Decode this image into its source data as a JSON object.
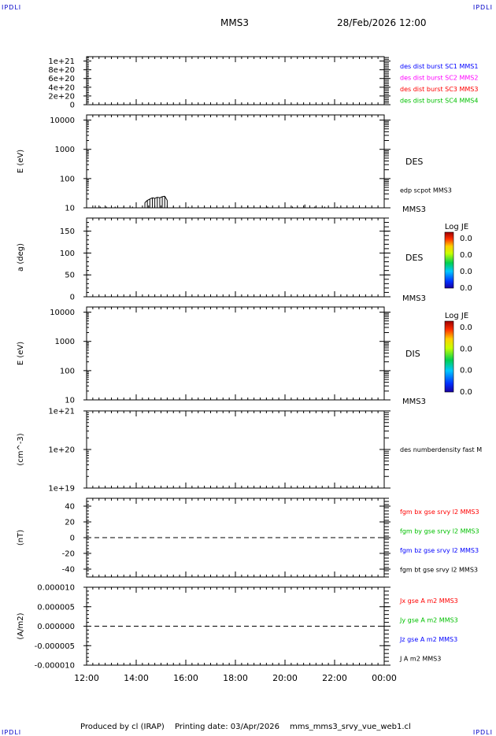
{
  "header": {
    "corner_left": "IPDLI",
    "corner_right": "IPDLI",
    "spacecraft": "MMS3",
    "date_time": "28/Feb/2026 12:00"
  },
  "footer": {
    "produced_by": "Produced by cl (IRAP)",
    "printing_date": "Printing date: 03/Apr/2026",
    "filename": "mms_mms3_srvy_vue_web1.cl",
    "corner_left": "IPDLI",
    "corner_right": "IPDLI"
  },
  "colors": {
    "blue": "#0000ff",
    "magenta": "#ff00ff",
    "red": "#ff0000",
    "green": "#00c000",
    "black": "#000000",
    "corner": "#0000c8"
  },
  "chart_data": [
    {
      "type": "line",
      "ylabel": "",
      "yscale": "linear",
      "ylim": [
        0,
        1.1e+21
      ],
      "ytick_values": [
        0,
        2e+20,
        4e+20,
        6e+20,
        8e+20,
        1e+21
      ],
      "ytick_labels": [
        "0",
        "2e+20",
        "4e+20",
        "6e+20",
        "8e+20",
        "1e+21"
      ],
      "reference_line": 0,
      "series": [
        {
          "name": "des dist burst SC1 MMS1",
          "color": "#0000ff",
          "values": []
        },
        {
          "name": "des dist burst SC2 MMS2",
          "color": "#ff00ff",
          "values": []
        },
        {
          "name": "des dist burst SC3 MMS3",
          "color": "#ff0000",
          "values": []
        },
        {
          "name": "des dist burst SC4 MMS4",
          "color": "#00c000",
          "values": []
        }
      ]
    },
    {
      "type": "heatmap",
      "ylabel": "E (eV)",
      "yscale": "log",
      "ylim": [
        10,
        15000
      ],
      "ytick_values": [
        10,
        100,
        1000,
        10000
      ],
      "ytick_labels": [
        "10",
        "100",
        "1000",
        "10000"
      ],
      "side_label": "DES",
      "spacecraft_label": "MMS3",
      "overlay_label": "edp scpot MMS3",
      "colorbar": {
        "title": "Log JE",
        "labels": [
          "0.0",
          "0.0",
          "0.0",
          "0.0"
        ]
      },
      "overlay": {
        "name": "edp scpot MMS3",
        "color": "#000000",
        "x": [
          12.35,
          12.55,
          12.8,
          13.15,
          13.5,
          13.85,
          14.35,
          14.45,
          14.55,
          14.65,
          14.75,
          14.85,
          14.95,
          15.05,
          15.15,
          15.25,
          15.5,
          16.1,
          17.0,
          18.5,
          19.3,
          20.3,
          20.8,
          21.2,
          21.6,
          22.1
        ],
        "y": [
          12,
          11,
          11,
          11,
          11,
          11,
          15,
          18,
          20,
          22,
          21,
          23,
          22,
          24,
          25,
          18,
          11,
          11,
          11,
          12,
          11,
          11,
          13,
          11,
          11,
          11
        ]
      }
    },
    {
      "type": "heatmap",
      "ylabel": "a (deg)",
      "yscale": "linear",
      "ylim": [
        0,
        180
      ],
      "ytick_values": [
        0,
        50,
        100,
        150
      ],
      "ytick_labels": [
        "0",
        "50",
        "100",
        "150"
      ],
      "side_label": "DES",
      "spacecraft_label": "MMS3",
      "colorbar": {
        "title": "Log JE",
        "labels": [
          "0.0",
          "0.0",
          "0.0",
          "0.0"
        ]
      }
    },
    {
      "type": "heatmap",
      "ylabel": "E (eV)",
      "yscale": "log",
      "ylim": [
        10,
        15000
      ],
      "ytick_values": [
        10,
        100,
        1000,
        10000
      ],
      "ytick_labels": [
        "10",
        "100",
        "1000",
        "10000"
      ],
      "side_label": "DIS",
      "spacecraft_label": "MMS3",
      "colorbar": {
        "title": "Log JE",
        "labels": [
          "0.0",
          "0.0",
          "0.0",
          "0.0"
        ]
      }
    },
    {
      "type": "line",
      "ylabel": "(cm^-3)",
      "yscale": "log",
      "ylim": [
        1e+19,
        1e+21
      ],
      "ytick_values": [
        1e+19,
        1e+20,
        1e+21
      ],
      "ytick_labels": [
        "1e+19",
        "1e+20",
        "1e+21"
      ],
      "series": [
        {
          "name": "des numberdensity fast M",
          "color": "#000000",
          "values": []
        }
      ]
    },
    {
      "type": "line",
      "ylabel": "(nT)",
      "yscale": "linear",
      "ylim": [
        -50,
        50
      ],
      "ytick_values": [
        -40,
        -20,
        0,
        20,
        40
      ],
      "ytick_labels": [
        "-40",
        "-20",
        "0",
        "20",
        "40"
      ],
      "reference_line": 0,
      "series": [
        {
          "name": "fgm bx gse srvy l2 MMS3",
          "color": "#ff0000",
          "values": []
        },
        {
          "name": "fgm by gse srvy l2 MMS3",
          "color": "#00c000",
          "values": []
        },
        {
          "name": "fgm bz gse srvy l2 MMS3",
          "color": "#0000ff",
          "values": []
        },
        {
          "name": "fgm bt gse srvy l2 MMS3",
          "color": "#000000",
          "values": []
        }
      ]
    },
    {
      "type": "line",
      "ylabel": "(A/m2)",
      "yscale": "linear",
      "ylim": [
        -1e-05,
        1e-05
      ],
      "ytick_values": [
        -1e-05,
        -5e-06,
        0,
        5e-06,
        1e-05
      ],
      "ytick_labels": [
        "-0.000010",
        "-0.000005",
        "0.000000",
        "0.000005",
        "0.000010"
      ],
      "reference_line": 0,
      "series": [
        {
          "name": "Jx gse A m2 MMS3",
          "color": "#ff0000",
          "values": []
        },
        {
          "name": "Jy gse A m2 MMS3",
          "color": "#00c000",
          "values": []
        },
        {
          "name": "Jz gse A m2 MMS3",
          "color": "#0000ff",
          "values": []
        },
        {
          "name": "J A m2 MMS3",
          "color": "#000000",
          "values": []
        }
      ]
    }
  ],
  "time_axis": {
    "range_hours": [
      12,
      24
    ],
    "tick_values": [
      12,
      14,
      16,
      18,
      20,
      22,
      24
    ],
    "tick_labels": [
      "12:00",
      "14:00",
      "16:00",
      "18:00",
      "20:00",
      "22:00",
      "00:00"
    ]
  }
}
